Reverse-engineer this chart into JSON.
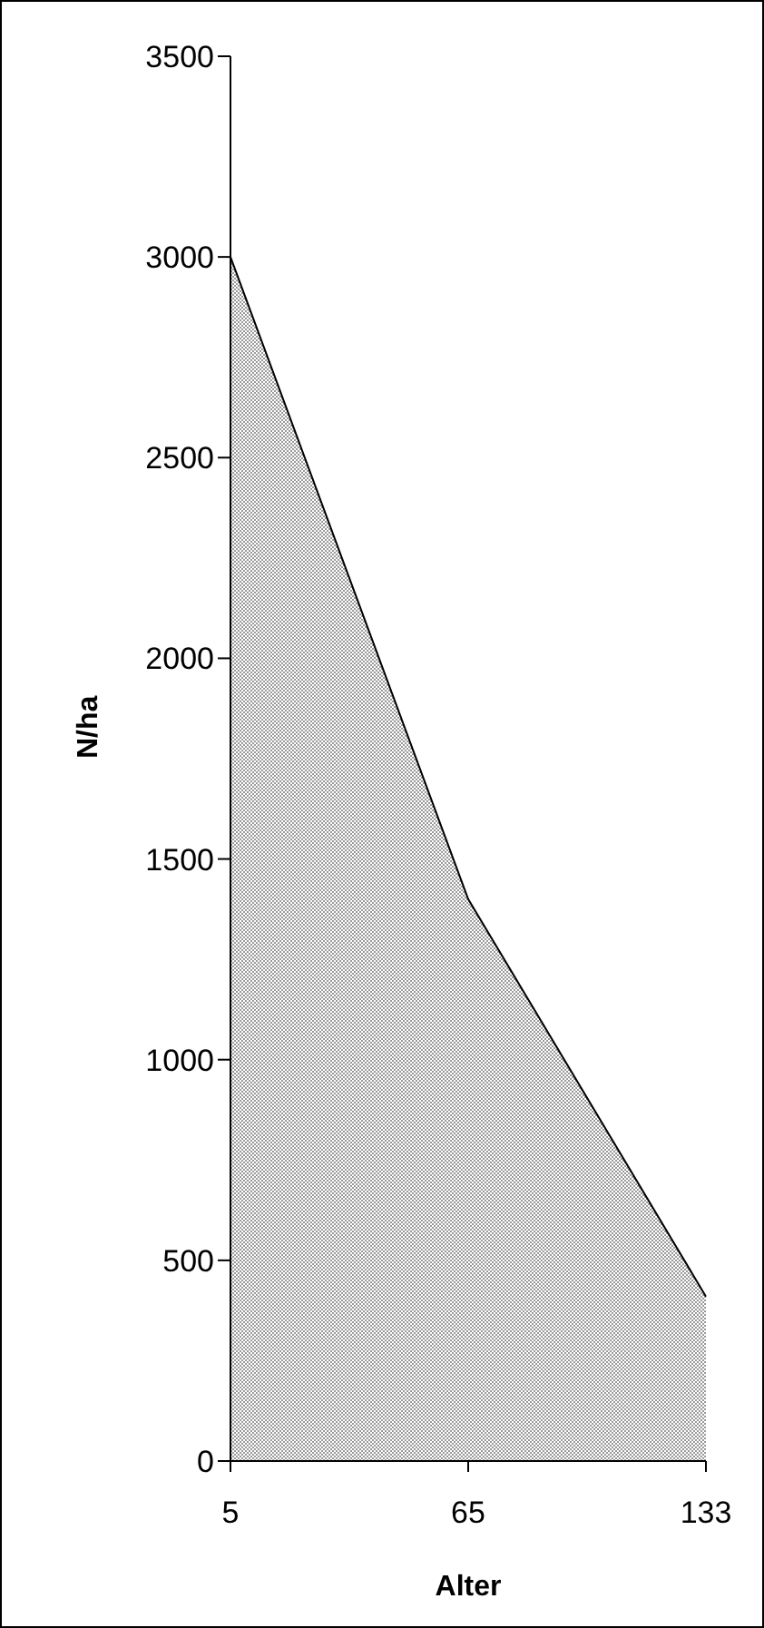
{
  "chart_data": {
    "type": "area",
    "categories": [
      "5",
      "65",
      "133"
    ],
    "xlabel": "Alter",
    "ylabel": "N/ha",
    "series": [
      {
        "color": "#9a9a9a",
        "values": [
          3000,
          1400,
          410
        ]
      }
    ],
    "ylim": [
      0,
      3500
    ],
    "yticks": [
      0,
      500,
      1000,
      1500,
      2000,
      2500,
      3000,
      3500
    ],
    "grid": false,
    "legend": false
  }
}
